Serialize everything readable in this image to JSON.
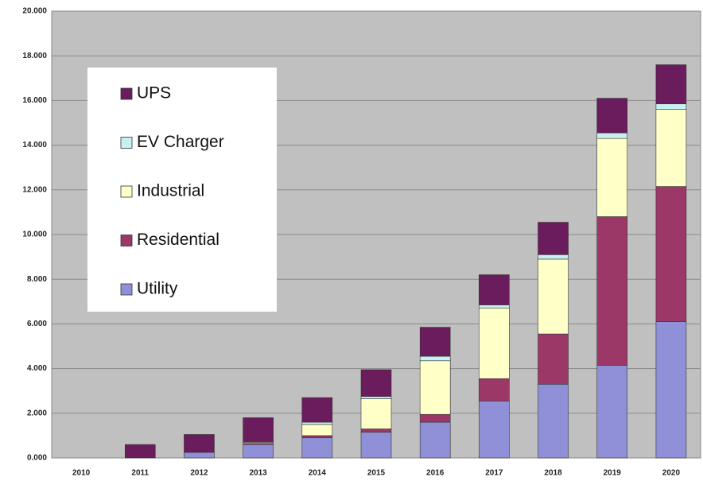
{
  "chart_data": {
    "type": "stacked_bar",
    "categories": [
      "2010",
      "2011",
      "2012",
      "2013",
      "2014",
      "2015",
      "2016",
      "2017",
      "2018",
      "2019",
      "2020"
    ],
    "series": [
      {
        "name": "Utility",
        "color": "#9090d8",
        "values": [
          0,
          0,
          250,
          600,
          900,
          1150,
          1600,
          2550,
          3300,
          4150,
          6100
        ]
      },
      {
        "name": "Residential",
        "color": "#9c3868",
        "values": [
          0,
          0,
          0,
          50,
          100,
          150,
          350,
          1000,
          2250,
          6650,
          6050
        ]
      },
      {
        "name": "Industrial",
        "color": "#ffffc8",
        "values": [
          0,
          0,
          0,
          50,
          500,
          1350,
          2400,
          3150,
          3350,
          3500,
          3450
        ]
      },
      {
        "name": "EV Charger",
        "color": "#c8f0f0",
        "values": [
          0,
          0,
          0,
          0,
          100,
          100,
          200,
          150,
          200,
          250,
          250
        ]
      },
      {
        "name": "UPS",
        "color": "#6a1c5c",
        "values": [
          0,
          600,
          800,
          1100,
          1100,
          1200,
          1300,
          1350,
          1450,
          1550,
          1750
        ]
      }
    ],
    "ylim": [
      0,
      20000
    ],
    "yticks": [
      {
        "value": 0,
        "label": "0.000"
      },
      {
        "value": 2000,
        "label": "2.000"
      },
      {
        "value": 4000,
        "label": "4.000"
      },
      {
        "value": 6000,
        "label": "6.000"
      },
      {
        "value": 8000,
        "label": "8.000"
      },
      {
        "value": 10000,
        "label": "10.000"
      },
      {
        "value": 12000,
        "label": "12.000"
      },
      {
        "value": 14000,
        "label": "14.000"
      },
      {
        "value": 16000,
        "label": "16.000"
      },
      {
        "value": 18000,
        "label": "18.000"
      },
      {
        "value": 20000,
        "label": "20.000"
      }
    ],
    "grid": true,
    "legend": "upper left"
  }
}
